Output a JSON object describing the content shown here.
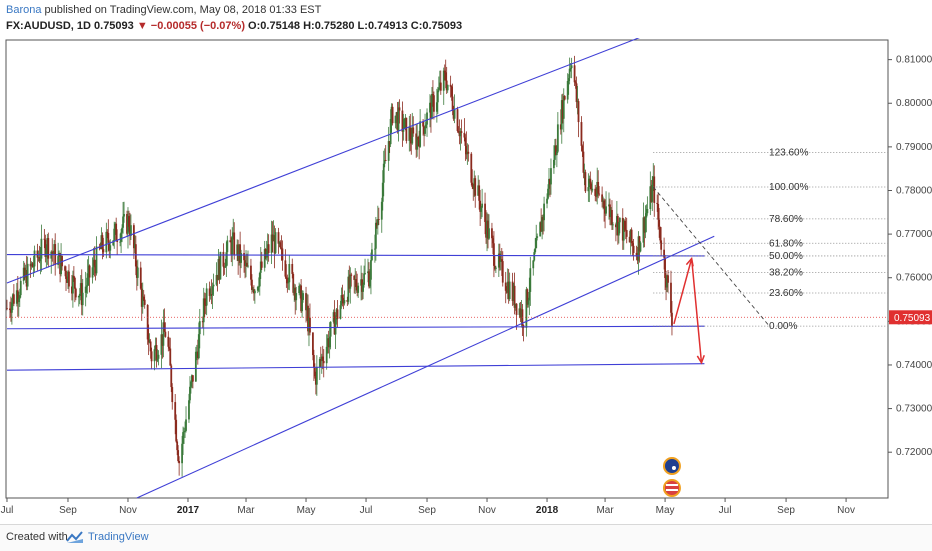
{
  "header": {
    "author": "Barona",
    "published": " published on TradingView.com, May 08, 2018 01:33 EST",
    "symbol": "FX:AUDUSD, 1D",
    "last": "0.75093",
    "arrow": "▼",
    "change": "−0.00055 (−0.07%)",
    "o_label": "O:",
    "o_value": "0.75148",
    "h_label": "H:",
    "h_value": "0.75280",
    "l_label": "L:",
    "l_value": "0.74913",
    "c_label": "C:",
    "c_value": "0.75093"
  },
  "footer": {
    "created": "Created with",
    "brand": "TradingView"
  },
  "colors": {
    "up": "#3b7a3b",
    "down": "#8b2a1e",
    "channel": "#3f3fd6",
    "arrow": "#e03030",
    "price_tag": "#e03030",
    "fib": "#777777"
  },
  "chart_data": {
    "type": "candlestick",
    "symbol": "FX:AUDUSD",
    "interval": "1D",
    "last_price": 0.75093,
    "x_ticks": [
      "Jul",
      "Sep",
      "Nov",
      "2017",
      "Mar",
      "May",
      "Jul",
      "Sep",
      "Nov",
      "2018",
      "Mar",
      "May",
      "Jul",
      "Sep",
      "Nov"
    ],
    "x_ticks_bold": [
      "2017",
      "2018"
    ],
    "y_ticks": [
      "0.81000",
      "0.80000",
      "0.79000",
      "0.78000",
      "0.77000",
      "0.76000",
      "0.75000",
      "0.74000",
      "0.73000",
      "0.72000"
    ],
    "ylim": [
      0.7095,
      0.8145
    ],
    "price_path": [
      {
        "date": "2016-07-01",
        "close": 0.753
      },
      {
        "date": "2016-08-10",
        "close": 0.768
      },
      {
        "date": "2016-09-15",
        "close": 0.756
      },
      {
        "date": "2016-10-05",
        "close": 0.767
      },
      {
        "date": "2016-11-02",
        "close": 0.773
      },
      {
        "date": "2016-11-25",
        "close": 0.742
      },
      {
        "date": "2016-12-10",
        "close": 0.748
      },
      {
        "date": "2016-12-23",
        "close": 0.718
      },
      {
        "date": "2017-01-20",
        "close": 0.757
      },
      {
        "date": "2017-02-15",
        "close": 0.768
      },
      {
        "date": "2017-03-10",
        "close": 0.758
      },
      {
        "date": "2017-03-28",
        "close": 0.769
      },
      {
        "date": "2017-05-02",
        "close": 0.752
      },
      {
        "date": "2017-05-10",
        "close": 0.737
      },
      {
        "date": "2017-06-10",
        "close": 0.757
      },
      {
        "date": "2017-07-05",
        "close": 0.761
      },
      {
        "date": "2017-07-28",
        "close": 0.798
      },
      {
        "date": "2017-08-20",
        "close": 0.791
      },
      {
        "date": "2017-09-20",
        "close": 0.806
      },
      {
        "date": "2017-10-20",
        "close": 0.781
      },
      {
        "date": "2017-11-10",
        "close": 0.764
      },
      {
        "date": "2017-12-08",
        "close": 0.751
      },
      {
        "date": "2018-01-05",
        "close": 0.784
      },
      {
        "date": "2018-01-26",
        "close": 0.811
      },
      {
        "date": "2018-02-09",
        "close": 0.782
      },
      {
        "date": "2018-03-01",
        "close": 0.777
      },
      {
        "date": "2018-04-02",
        "close": 0.766
      },
      {
        "date": "2018-04-19",
        "close": 0.781
      },
      {
        "date": "2018-05-08",
        "close": 0.751
      }
    ],
    "fib_levels": [
      {
        "label": "123.60%",
        "price": 0.7887
      },
      {
        "label": "100.00%",
        "price": 0.7808
      },
      {
        "label": "78.60%",
        "price": 0.7735
      },
      {
        "label": "61.80%",
        "price": 0.7679
      },
      {
        "label": "50.00%",
        "price": 0.765
      },
      {
        "label": "38.20%",
        "price": 0.7612
      },
      {
        "label": "23.60%",
        "price": 0.7565
      },
      {
        "label": "0.00%",
        "price": 0.7489
      }
    ],
    "trendlines": [
      {
        "from": {
          "date": "2016-07-01",
          "price": 0.7588
        },
        "to": {
          "date": "2018-04-10",
          "price": 0.8155
        }
      },
      {
        "from": {
          "date": "2016-11-10",
          "price": 0.7095
        },
        "to": {
          "date": "2018-06-20",
          "price": 0.7695
        }
      },
      {
        "from": {
          "date": "2016-07-01",
          "price": 0.7653
        },
        "to": {
          "date": "2018-06-10",
          "price": 0.765
        }
      },
      {
        "from": {
          "date": "2016-07-01",
          "price": 0.7483
        },
        "to": {
          "date": "2018-06-10",
          "price": 0.7489
        }
      },
      {
        "from": {
          "date": "2016-07-01",
          "price": 0.7388
        },
        "to": {
          "date": "2018-06-10",
          "price": 0.7403
        }
      }
    ],
    "projection": [
      {
        "date": "2018-05-10",
        "price": 0.7494
      },
      {
        "date": "2018-05-28",
        "price": 0.7644
      },
      {
        "date": "2018-06-07",
        "price": 0.7405
      }
    ],
    "grid": false,
    "legend": "none"
  }
}
